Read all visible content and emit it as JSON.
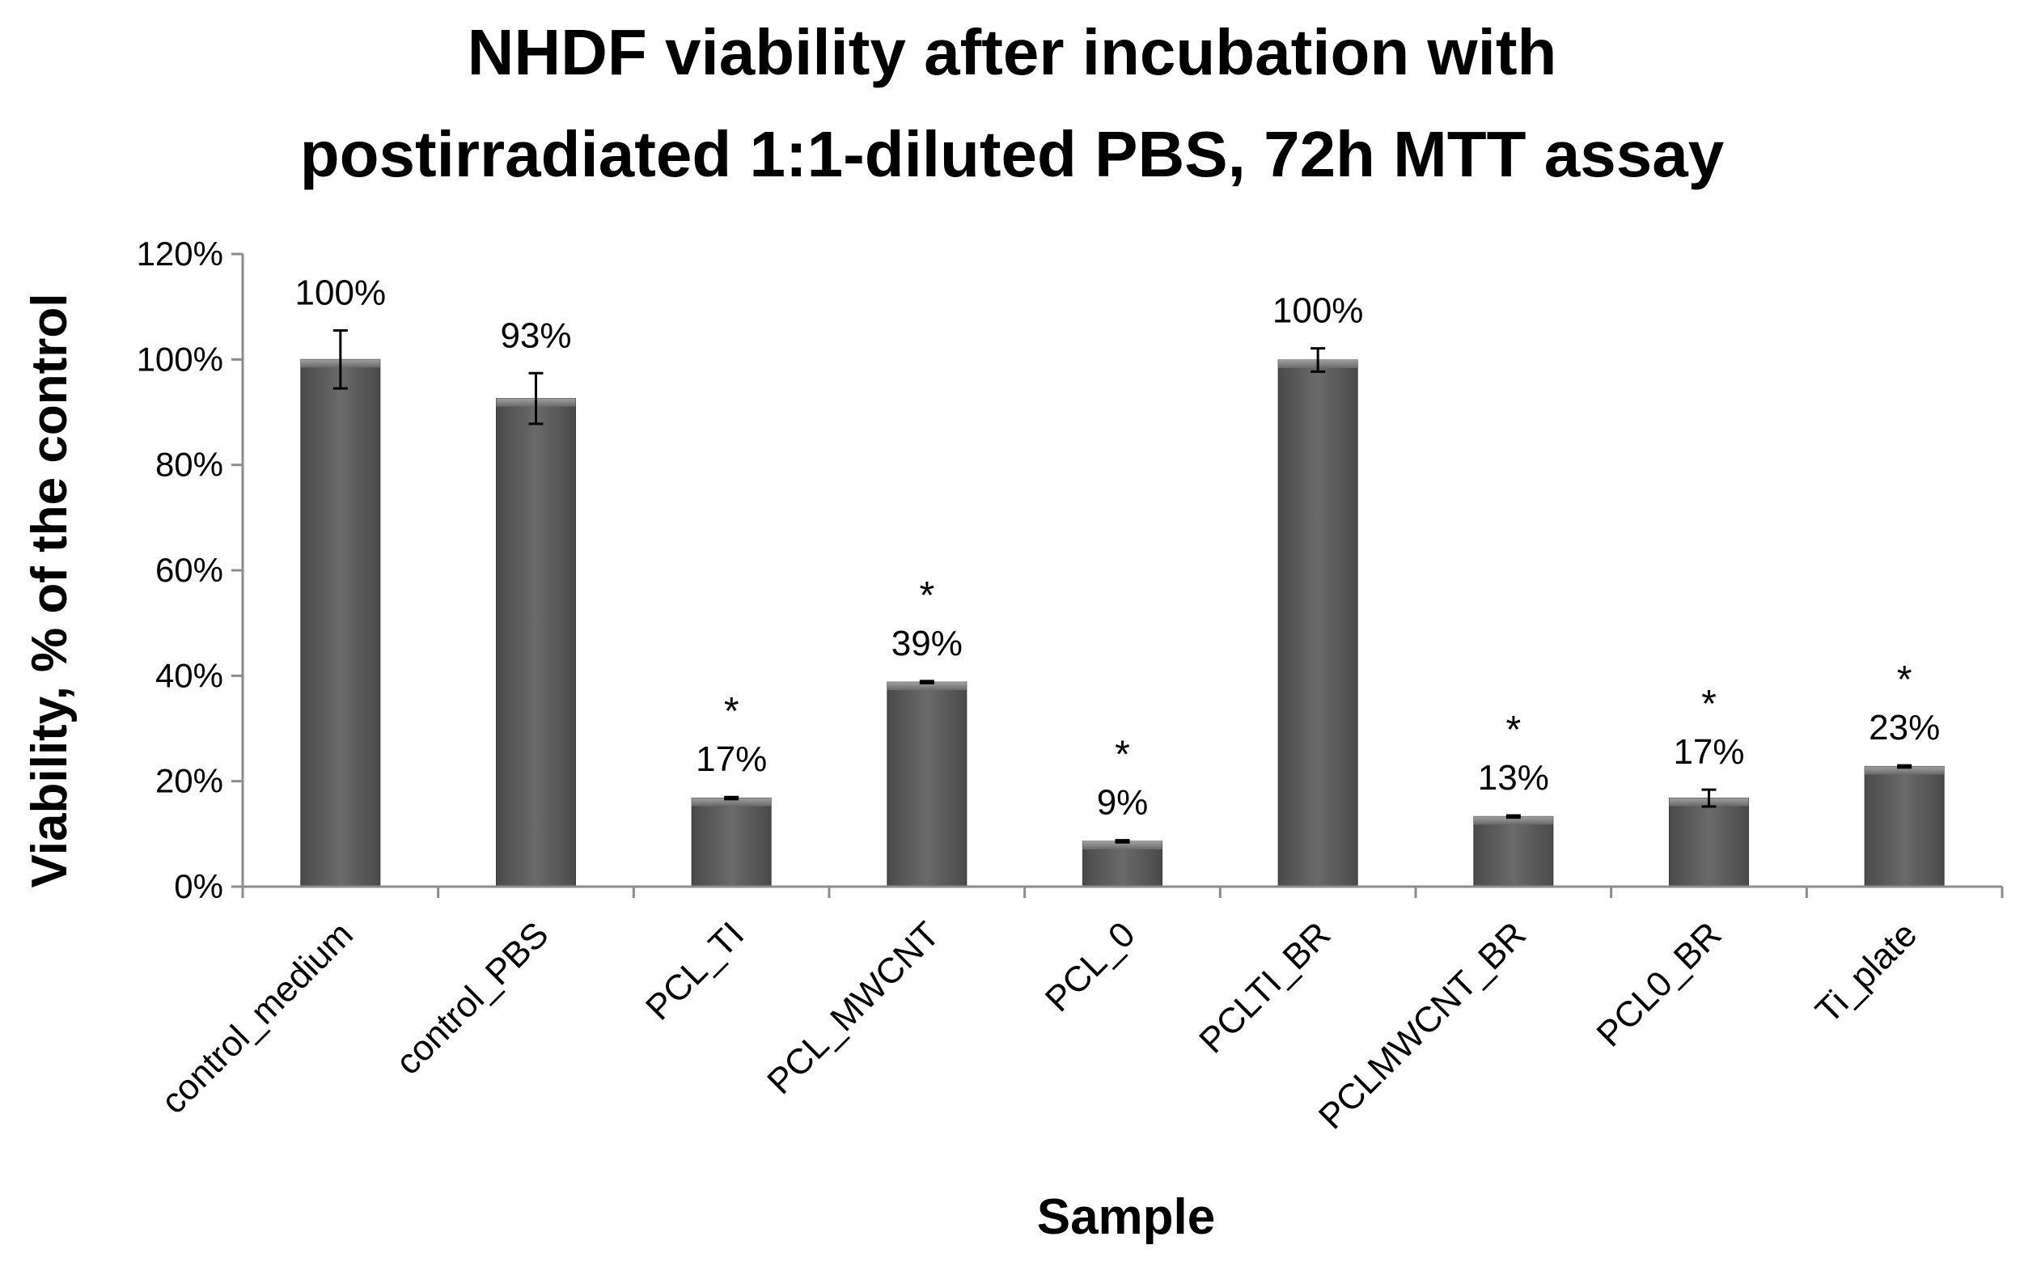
{
  "chart_data": {
    "type": "bar",
    "title_lines": [
      "NHDF viability after incubation with",
      "postirradiated 1:1-diluted PBS, 72h MTT assay"
    ],
    "xlabel": "Sample",
    "ylabel": "Viability, % of the control",
    "ylim": [
      0,
      1.2
    ],
    "yticks": [
      0,
      0.2,
      0.4,
      0.6,
      0.8,
      1.0,
      1.2
    ],
    "ytick_labels": [
      "0%",
      "20%",
      "40%",
      "60%",
      "80%",
      "100%",
      "120%"
    ],
    "categories": [
      "control_medium",
      "control_PBS",
      "PCL_TI",
      "PCL_MWCNT",
      "PCL_0",
      "PCLTI_BR",
      "PCLMWCNT_BR",
      "PCL0_BR",
      "Ti_plate"
    ],
    "values": [
      1.0,
      0.926,
      0.168,
      0.388,
      0.086,
      0.999,
      0.133,
      0.168,
      0.228
    ],
    "errors": [
      0.055,
      0.048,
      0.002,
      0.002,
      0.002,
      0.022,
      0.002,
      0.016,
      0.002
    ],
    "value_labels": [
      "100%",
      "93%",
      "17%",
      "39%",
      "9%",
      "100%",
      "13%",
      "17%",
      "23%"
    ],
    "significance": [
      "",
      "",
      "*",
      "*",
      "*",
      "",
      "*",
      "*",
      "*"
    ],
    "bar_color": "#595959",
    "bar_highlight_color": "#8a8a8a",
    "axis_color": "#8c8c8c",
    "grid": false
  }
}
